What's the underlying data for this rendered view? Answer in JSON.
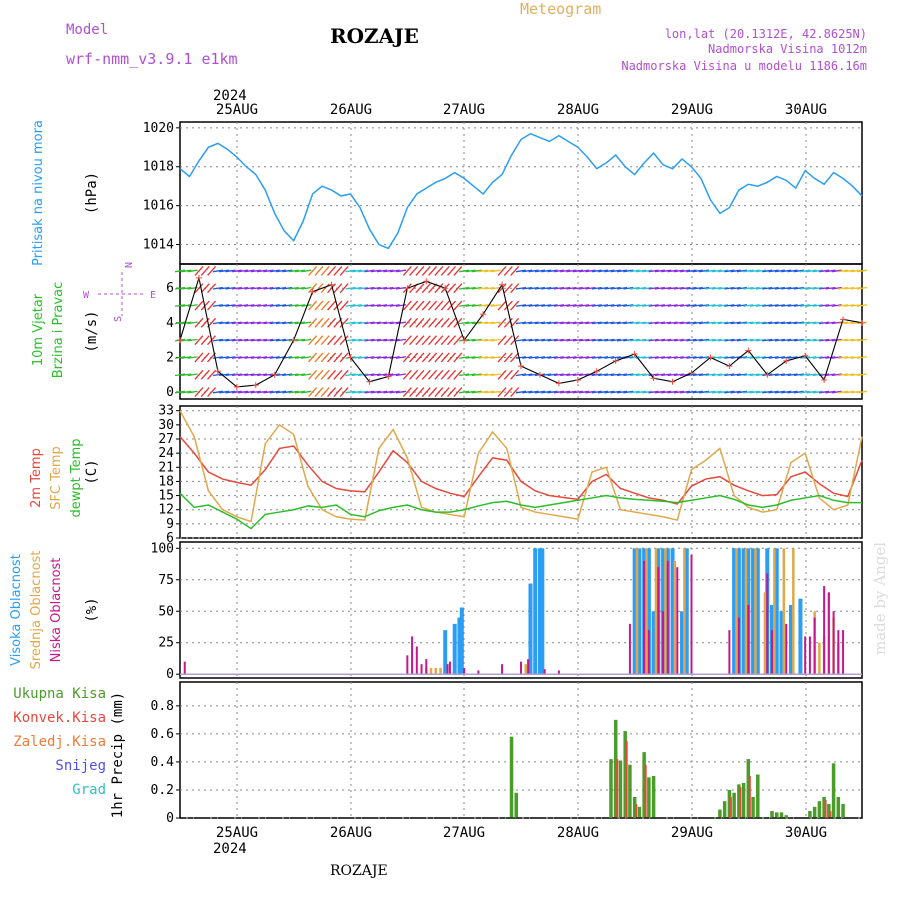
{
  "header": {
    "model_label": "Model",
    "model_name": "wrf-nmm_v3.9.1 e1km",
    "station": "ROZAJE",
    "title": "Meteogram",
    "coords": "lon,lat (20.1312E, 42.8625N)",
    "elevation": "Nadmorska Visina 1012m",
    "model_elevation": "Nadmorska Visina u modelu 1186.16m",
    "footer_station": "ROZAJE",
    "watermark": "made by Angel"
  },
  "colors": {
    "pressure": "#2a9df4",
    "temp2m": "#e8483c",
    "sfc_temp": "#e0a84a",
    "dewpt": "#2bbd2b",
    "high_cloud": "#2a9df4",
    "mid_cloud": "#e0a84a",
    "low_cloud": "#c8168f",
    "precip_total": "#4a9d2a",
    "precip_conv": "#e8483c",
    "wind_speed": "#000000",
    "label_purple": "#b050d0",
    "title_orange": "#e0b060"
  },
  "chart_data": [
    {
      "type": "line",
      "name": "pressure",
      "ylabel_left": "Pritisak na nivou mora",
      "ylabel_unit": "(hPa)",
      "ylim": [
        1013,
        1020.3
      ],
      "yticks": [
        1014,
        1016,
        1018,
        1020
      ],
      "x_hours": [
        0,
        2,
        4,
        6,
        8,
        10,
        12,
        14,
        16,
        18,
        20,
        22,
        24,
        26,
        28,
        30,
        32,
        34,
        36,
        38,
        40,
        42,
        44,
        46,
        48,
        50,
        52,
        54,
        56,
        58,
        60,
        62,
        64,
        66,
        68,
        70,
        72,
        74,
        76,
        78,
        80,
        82,
        84,
        86,
        88,
        90,
        92,
        94,
        96,
        98,
        100,
        102,
        104,
        106,
        108,
        110,
        112,
        114,
        116,
        118,
        120,
        122,
        124,
        126,
        128,
        130,
        132,
        134,
        136,
        138,
        140,
        142,
        144
      ],
      "values": [
        1017.9,
        1017.5,
        1018.3,
        1019.0,
        1019.2,
        1018.9,
        1018.5,
        1018.0,
        1017.6,
        1016.8,
        1015.6,
        1014.7,
        1014.2,
        1015.2,
        1016.6,
        1017.0,
        1016.8,
        1016.5,
        1016.6,
        1015.9,
        1014.8,
        1014.0,
        1013.8,
        1014.6,
        1015.9,
        1016.6,
        1016.9,
        1017.2,
        1017.4,
        1017.7,
        1017.4,
        1017.0,
        1016.6,
        1017.2,
        1017.6,
        1018.6,
        1019.4,
        1019.7,
        1019.5,
        1019.3,
        1019.6,
        1019.3,
        1019.0,
        1018.5,
        1017.9,
        1018.2,
        1018.6,
        1018.0,
        1017.6,
        1018.2,
        1018.7,
        1018.1,
        1017.9,
        1018.4,
        1018.0,
        1017.4,
        1016.3,
        1015.6,
        1015.9,
        1016.8,
        1017.1,
        1017.0,
        1017.2,
        1017.5,
        1017.3,
        1016.9,
        1017.8,
        1017.4,
        1017.1,
        1017.7,
        1017.4,
        1017.0,
        1016.5
      ]
    },
    {
      "type": "line",
      "name": "wind",
      "ylabel_left": "10m Vjetar",
      "ylabel_left2": "Brzina i Pravac",
      "ylabel_unit": "(m/s)",
      "compass": {
        "n": "N",
        "s": "S",
        "e": "E",
        "w": "W"
      },
      "ylim": [
        -0.4,
        7.4
      ],
      "yticks": [
        0,
        2,
        4,
        6
      ],
      "x_hours": [
        0,
        4,
        8,
        12,
        16,
        20,
        24,
        28,
        32,
        36,
        40,
        44,
        48,
        52,
        56,
        60,
        64,
        68,
        72,
        76,
        80,
        84,
        88,
        92,
        96,
        100,
        104,
        108,
        112,
        116,
        120,
        124,
        128,
        132,
        136,
        140,
        144
      ],
      "values": [
        3.0,
        6.6,
        1.2,
        0.3,
        0.4,
        1.0,
        3.0,
        5.8,
        6.2,
        2.0,
        0.6,
        0.9,
        6.0,
        6.4,
        6.0,
        3.0,
        4.5,
        6.2,
        1.5,
        1.0,
        0.5,
        0.7,
        1.2,
        1.8,
        2.2,
        0.8,
        0.6,
        1.1,
        2.0,
        1.5,
        2.4,
        1.0,
        1.8,
        2.1,
        0.7,
        4.2,
        4.0
      ]
    },
    {
      "type": "line",
      "name": "temperature",
      "ylabel_left": "2m Temp",
      "ylabel_left2": "SFC Temp",
      "ylabel_left3": "dewpt Temp",
      "ylabel_unit": "(C)",
      "ylim": [
        6,
        34
      ],
      "yticks": [
        6,
        9,
        12,
        15,
        18,
        21,
        24,
        27,
        30,
        33
      ],
      "x_hours": [
        0,
        3,
        6,
        9,
        12,
        15,
        18,
        21,
        24,
        27,
        30,
        33,
        36,
        39,
        42,
        45,
        48,
        51,
        54,
        57,
        60,
        63,
        66,
        69,
        72,
        75,
        78,
        81,
        84,
        87,
        90,
        93,
        96,
        99,
        102,
        105,
        108,
        111,
        114,
        117,
        120,
        123,
        126,
        129,
        132,
        135,
        138,
        141,
        144
      ],
      "series": [
        {
          "name": "2m Temp",
          "values": [
            27.5,
            24.0,
            20.0,
            18.5,
            17.8,
            17.2,
            20.5,
            25.0,
            25.5,
            21.5,
            18.0,
            16.5,
            16.0,
            15.8,
            20.0,
            24.5,
            22.0,
            18.0,
            16.5,
            15.5,
            14.8,
            19.0,
            23.0,
            22.5,
            18.0,
            16.0,
            15.0,
            14.6,
            14.2,
            18.0,
            19.5,
            16.5,
            15.5,
            14.5,
            14.0,
            13.2,
            17.0,
            18.5,
            19.0,
            17.2,
            16.0,
            15.0,
            15.2,
            19.0,
            20.0,
            17.5,
            15.5,
            14.8,
            22.5
          ]
        },
        {
          "name": "SFC Temp",
          "values": [
            33.0,
            27.5,
            16.0,
            12.0,
            10.5,
            9.5,
            26.0,
            30.0,
            28.0,
            17.0,
            12.0,
            10.5,
            10.0,
            9.8,
            25.0,
            29.0,
            23.0,
            12.5,
            11.5,
            11.0,
            10.5,
            24.0,
            28.5,
            25.0,
            12.5,
            11.5,
            11.0,
            10.5,
            10.0,
            20.0,
            21.0,
            12.0,
            11.5,
            11.0,
            10.5,
            9.8,
            20.5,
            22.5,
            25.0,
            15.0,
            12.5,
            11.5,
            12.0,
            22.0,
            24.0,
            14.5,
            12.0,
            13.0,
            27.5
          ]
        },
        {
          "name": "dewpt Temp",
          "values": [
            15.5,
            12.5,
            13.0,
            11.5,
            10.0,
            8.0,
            11.0,
            11.5,
            12.0,
            12.8,
            12.5,
            13.0,
            11.0,
            10.5,
            11.8,
            12.5,
            13.0,
            12.0,
            11.5,
            11.5,
            12.0,
            12.8,
            13.5,
            13.8,
            13.0,
            12.5,
            13.0,
            13.5,
            14.0,
            14.5,
            15.0,
            14.5,
            14.2,
            14.0,
            13.8,
            13.5,
            14.0,
            14.5,
            15.0,
            14.2,
            13.0,
            12.5,
            13.0,
            14.0,
            14.5,
            15.0,
            14.0,
            13.5,
            13.5
          ]
        }
      ]
    },
    {
      "type": "bar",
      "name": "cloud",
      "ylabel_left": "Visoka Oblacnost",
      "ylabel_left2": "Srednja Oblacnost",
      "ylabel_left3": "Niska Oblacnost",
      "ylabel_unit": "(%)",
      "ylim": [
        -3,
        105
      ],
      "yticks": [
        0,
        25,
        50,
        75,
        100
      ],
      "series": [
        {
          "name": "Visoka Oblacnost",
          "x_hours": [
            56,
            58,
            59,
            59.5,
            74,
            75,
            76,
            76.5,
            96,
            97,
            98,
            99,
            100,
            101,
            102,
            103,
            104,
            106,
            107,
            117,
            118,
            119,
            120,
            121,
            122,
            124,
            125,
            126,
            127,
            129,
            131
          ],
          "values": [
            35,
            40,
            45,
            53,
            72,
            100,
            100,
            100,
            100,
            100,
            100,
            100,
            50,
            100,
            100,
            100,
            100,
            50,
            100,
            100,
            100,
            100,
            100,
            100,
            100,
            100,
            55,
            100,
            50,
            55,
            60
          ]
        },
        {
          "name": "Srednja Oblacnost",
          "x_hours": [
            52,
            53,
            54,
            55,
            73,
            96.5,
            98.5,
            100.5,
            102.5,
            104.5,
            106.5,
            117.5,
            119.5,
            121.5,
            123.5,
            125.5,
            127.5,
            129.5,
            134,
            135,
            136,
            137,
            138,
            139
          ],
          "values": [
            5,
            5,
            5,
            5,
            8,
            100,
            100,
            100,
            100,
            90,
            100,
            100,
            100,
            100,
            65,
            100,
            100,
            100,
            50,
            25,
            30,
            65,
            45,
            25
          ]
        },
        {
          "name": "Niska Oblacnost",
          "x_hours": [
            1,
            48,
            49,
            50,
            51,
            52,
            56.5,
            57,
            60,
            63,
            68,
            72,
            73.5,
            77,
            80,
            95,
            98,
            99,
            101,
            102,
            103,
            105,
            108,
            116,
            118,
            120,
            124,
            125,
            128,
            132,
            133,
            134,
            136,
            137,
            138,
            139,
            140
          ],
          "values": [
            10,
            15,
            30,
            22,
            8,
            12,
            8,
            10,
            5,
            3,
            8,
            10,
            12,
            4,
            3,
            40,
            90,
            35,
            85,
            50,
            90,
            85,
            95,
            35,
            45,
            55,
            80,
            35,
            40,
            30,
            30,
            45,
            70,
            65,
            50,
            35,
            35
          ]
        }
      ]
    },
    {
      "type": "bar",
      "name": "precip",
      "ylabel_left": "1hr Precip (mm)",
      "legend": [
        "Ukupna Kisa",
        "Konvek.Kisa",
        "Zaledj.Kisa",
        "Snijeg",
        "Grad"
      ],
      "ylim": [
        0,
        0.97
      ],
      "yticks": [
        0,
        0.2,
        0.4,
        0.6,
        0.8
      ],
      "series": [
        {
          "name": "Ukupna Kisa",
          "x_hours": [
            70,
            71,
            91,
            92,
            93,
            94,
            95,
            96,
            97,
            98,
            99,
            100,
            114,
            115,
            116,
            117,
            118,
            119,
            120,
            121,
            122,
            125,
            126,
            127,
            128,
            133,
            134,
            135,
            136,
            137,
            138,
            139,
            140
          ],
          "values": [
            0.58,
            0.18,
            0.42,
            0.7,
            0.41,
            0.62,
            0.38,
            0.15,
            0.08,
            0.47,
            0.29,
            0.3,
            0.06,
            0.12,
            0.2,
            0.18,
            0.24,
            0.25,
            0.42,
            0.15,
            0.31,
            0.05,
            0.04,
            0.04,
            0.02,
            0.05,
            0.08,
            0.12,
            0.15,
            0.1,
            0.39,
            0.15,
            0.1
          ]
        },
        {
          "name": "Konvek.Kisa",
          "x_hours": [
            92,
            94,
            96,
            98,
            116,
            118,
            120,
            136,
            137
          ],
          "values": [
            0.42,
            0.55,
            0.1,
            0.38,
            0.15,
            0.22,
            0.3,
            0.13,
            0.05
          ]
        }
      ]
    }
  ],
  "time_axis": {
    "start_label": "2024",
    "days": [
      "25AUG",
      "26AUG",
      "27AUG",
      "28AUG",
      "29AUG",
      "30AUG"
    ],
    "year_bottom": "2024"
  }
}
